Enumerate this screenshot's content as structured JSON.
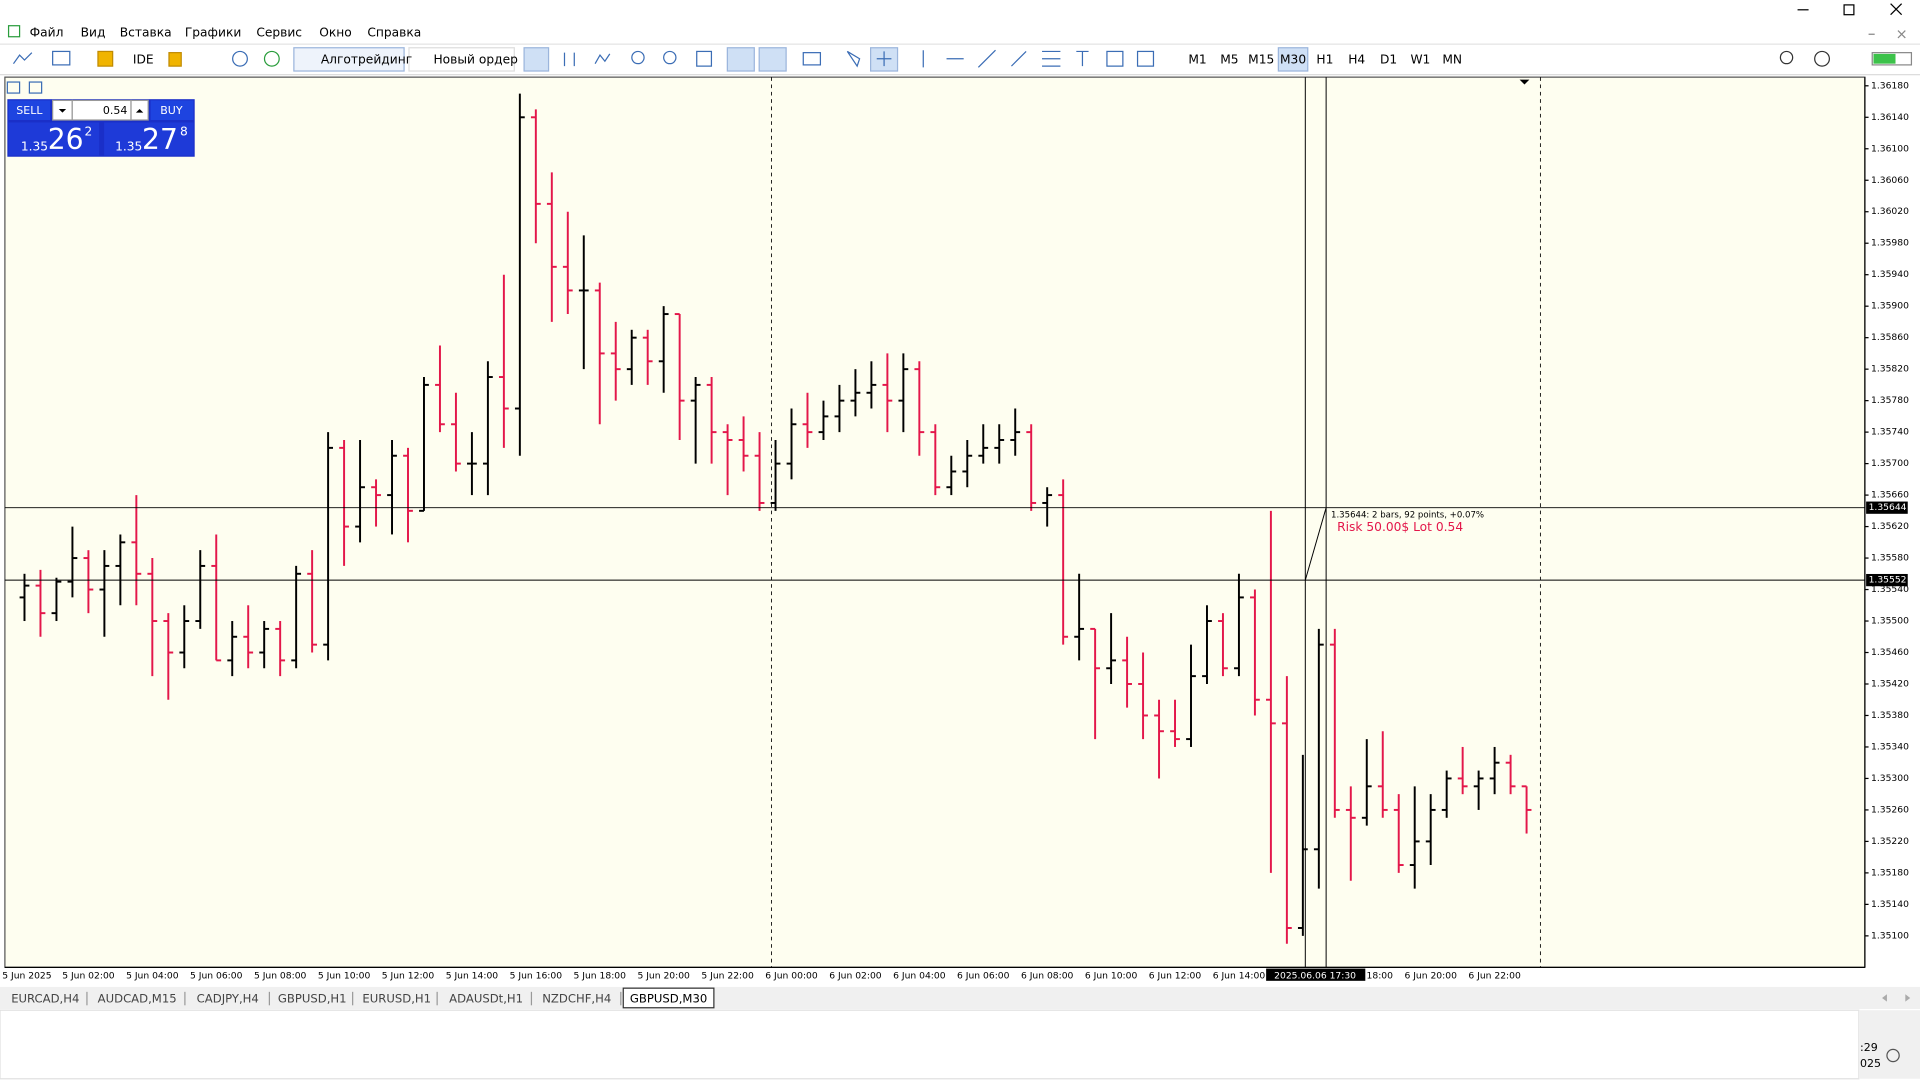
{
  "menu": [
    "Файл",
    "Вид",
    "Вставка",
    "Графики",
    "Сервис",
    "Окно",
    "Справка"
  ],
  "toolbar": {
    "ide": "IDE",
    "algo": "Алготрейдинг",
    "order": "Новый ордер",
    "timeframes": [
      "M1",
      "M5",
      "M15",
      "M30",
      "H1",
      "H4",
      "D1",
      "W1",
      "MN"
    ],
    "active_timeframe": 3
  },
  "trade_panel": {
    "sell": "SELL",
    "buy": "BUY",
    "lot": "0.54",
    "bid_big": "1.35",
    "bid_pips": "26",
    "bid_frac": "2",
    "ask_big": "1.35",
    "ask_pips": "27",
    "ask_frac": "8"
  },
  "chart_data": {
    "type": "ohlc",
    "up_color": "#000000",
    "down_color": "#e3174a",
    "background": "#fefef0",
    "ohlc": [
      [
        1.3553,
        1.3556,
        1.355,
        1.35545
      ],
      [
        1.35545,
        1.35565,
        1.3548,
        1.3551
      ],
      [
        1.3551,
        1.35555,
        1.355,
        1.3555
      ],
      [
        1.3555,
        1.3562,
        1.3553,
        1.3558
      ],
      [
        1.3558,
        1.3559,
        1.3551,
        1.3554
      ],
      [
        1.3554,
        1.3559,
        1.3548,
        1.3557
      ],
      [
        1.3557,
        1.3561,
        1.3552,
        1.356
      ],
      [
        1.356,
        1.3566,
        1.3552,
        1.3556
      ],
      [
        1.3556,
        1.3558,
        1.3543,
        1.355
      ],
      [
        1.355,
        1.3551,
        1.354,
        1.3546
      ],
      [
        1.3546,
        1.3552,
        1.3544,
        1.355
      ],
      [
        1.355,
        1.3559,
        1.3549,
        1.3557
      ],
      [
        1.3557,
        1.3561,
        1.3545,
        1.3545
      ],
      [
        1.3545,
        1.355,
        1.3543,
        1.3548
      ],
      [
        1.3548,
        1.3552,
        1.3544,
        1.3546
      ],
      [
        1.3546,
        1.355,
        1.3544,
        1.3549
      ],
      [
        1.3549,
        1.355,
        1.3543,
        1.3545
      ],
      [
        1.3545,
        1.3557,
        1.3544,
        1.3556
      ],
      [
        1.3556,
        1.3559,
        1.3546,
        1.3547
      ],
      [
        1.3547,
        1.3574,
        1.3545,
        1.3572
      ],
      [
        1.3572,
        1.3573,
        1.3557,
        1.3562
      ],
      [
        1.3562,
        1.3573,
        1.356,
        1.3567
      ],
      [
        1.3567,
        1.3568,
        1.3562,
        1.3566
      ],
      [
        1.3566,
        1.3573,
        1.3561,
        1.3571
      ],
      [
        1.3571,
        1.3572,
        1.356,
        1.3564
      ],
      [
        1.3564,
        1.3581,
        1.3564,
        1.358
      ],
      [
        1.358,
        1.3585,
        1.3574,
        1.3575
      ],
      [
        1.3575,
        1.3579,
        1.3569,
        1.357
      ],
      [
        1.357,
        1.3574,
        1.3566,
        1.357
      ],
      [
        1.357,
        1.3583,
        1.3566,
        1.3581
      ],
      [
        1.3581,
        1.3594,
        1.3572,
        1.3577
      ],
      [
        1.3577,
        1.3617,
        1.3571,
        1.3614
      ],
      [
        1.3614,
        1.3615,
        1.3598,
        1.3603
      ],
      [
        1.3603,
        1.3607,
        1.3588,
        1.3595
      ],
      [
        1.3595,
        1.3602,
        1.3589,
        1.3592
      ],
      [
        1.3592,
        1.3599,
        1.3582,
        1.3592
      ],
      [
        1.3592,
        1.3593,
        1.3575,
        1.3584
      ],
      [
        1.3584,
        1.3588,
        1.3578,
        1.3582
      ],
      [
        1.3582,
        1.3587,
        1.358,
        1.3586
      ],
      [
        1.3586,
        1.3587,
        1.358,
        1.3583
      ],
      [
        1.3583,
        1.359,
        1.3579,
        1.3589
      ],
      [
        1.3589,
        1.3589,
        1.3573,
        1.3578
      ],
      [
        1.3578,
        1.3581,
        1.357,
        1.358
      ],
      [
        1.358,
        1.3581,
        1.357,
        1.3574
      ],
      [
        1.3574,
        1.3575,
        1.3566,
        1.3573
      ],
      [
        1.3573,
        1.3576,
        1.3569,
        1.3571
      ],
      [
        1.3571,
        1.3574,
        1.3564,
        1.3565
      ],
      [
        1.3565,
        1.3573,
        1.3564,
        1.357
      ],
      [
        1.357,
        1.3577,
        1.3568,
        1.3575
      ],
      [
        1.3575,
        1.3579,
        1.3572,
        1.3574
      ],
      [
        1.3574,
        1.3578,
        1.3573,
        1.3576
      ],
      [
        1.3576,
        1.358,
        1.3574,
        1.3578
      ],
      [
        1.3578,
        1.3582,
        1.3576,
        1.3579
      ],
      [
        1.3579,
        1.3583,
        1.3577,
        1.358
      ],
      [
        1.358,
        1.3584,
        1.3574,
        1.3578
      ],
      [
        1.3578,
        1.3584,
        1.3574,
        1.3582
      ],
      [
        1.3582,
        1.3583,
        1.3571,
        1.3574
      ],
      [
        1.3574,
        1.3575,
        1.3566,
        1.3567
      ],
      [
        1.3567,
        1.3571,
        1.3566,
        1.3569
      ],
      [
        1.3569,
        1.3573,
        1.3567,
        1.3571
      ],
      [
        1.3571,
        1.3575,
        1.357,
        1.3572
      ],
      [
        1.3572,
        1.3575,
        1.357,
        1.3573
      ],
      [
        1.3573,
        1.3577,
        1.3571,
        1.3574
      ],
      [
        1.3574,
        1.3575,
        1.3564,
        1.3565
      ],
      [
        1.3565,
        1.3567,
        1.3562,
        1.3566
      ],
      [
        1.3566,
        1.3568,
        1.3547,
        1.3548
      ],
      [
        1.3548,
        1.3556,
        1.3545,
        1.3549
      ],
      [
        1.3549,
        1.3549,
        1.3535,
        1.3544
      ],
      [
        1.3544,
        1.3551,
        1.3542,
        1.3545
      ],
      [
        1.3545,
        1.3548,
        1.3539,
        1.3542
      ],
      [
        1.3542,
        1.3546,
        1.3535,
        1.3538
      ],
      [
        1.3538,
        1.354,
        1.353,
        1.3536
      ],
      [
        1.3536,
        1.354,
        1.3534,
        1.3535
      ],
      [
        1.3535,
        1.3547,
        1.3534,
        1.3543
      ],
      [
        1.3543,
        1.3552,
        1.3542,
        1.355
      ],
      [
        1.355,
        1.3551,
        1.3543,
        1.3544
      ],
      [
        1.3544,
        1.3556,
        1.3543,
        1.3553
      ],
      [
        1.3553,
        1.3554,
        1.3538,
        1.354
      ],
      [
        1.354,
        1.3564,
        1.3518,
        1.3537
      ],
      [
        1.3537,
        1.3543,
        1.3509,
        1.3511
      ],
      [
        1.3511,
        1.3533,
        1.351,
        1.3521
      ],
      [
        1.3521,
        1.3549,
        1.3516,
        1.3547
      ],
      [
        1.3547,
        1.3549,
        1.3525,
        1.3526
      ],
      [
        1.3526,
        1.3529,
        1.3517,
        1.3525
      ],
      [
        1.3525,
        1.3535,
        1.3524,
        1.3529
      ],
      [
        1.3529,
        1.3536,
        1.3525,
        1.3526
      ],
      [
        1.3526,
        1.3528,
        1.3518,
        1.3519
      ],
      [
        1.3519,
        1.3529,
        1.3516,
        1.3522
      ],
      [
        1.3522,
        1.3528,
        1.3519,
        1.3526
      ],
      [
        1.3526,
        1.3531,
        1.3525,
        1.353
      ],
      [
        1.353,
        1.3534,
        1.3528,
        1.3529
      ],
      [
        1.3529,
        1.3531,
        1.3526,
        1.353
      ],
      [
        1.353,
        1.3534,
        1.3528,
        1.3532
      ],
      [
        1.3532,
        1.3533,
        1.3528,
        1.3529
      ],
      [
        1.3529,
        1.3529,
        1.3523,
        1.3526
      ]
    ],
    "ylim": [
      1.3506,
      1.36191
    ],
    "yticks": [
      {
        "value": 1.3618,
        "label": "1.36180"
      },
      {
        "value": 1.3614,
        "label": "1.36140"
      },
      {
        "value": 1.361,
        "label": "1.36100"
      },
      {
        "value": 1.3606,
        "label": "1.36060"
      },
      {
        "value": 1.3602,
        "label": "1.36020"
      },
      {
        "value": 1.3598,
        "label": "1.35980"
      },
      {
        "value": 1.3594,
        "label": "1.35940"
      },
      {
        "value": 1.359,
        "label": "1.35900"
      },
      {
        "value": 1.3586,
        "label": "1.35860"
      },
      {
        "value": 1.3582,
        "label": "1.35820"
      },
      {
        "value": 1.3578,
        "label": "1.35780"
      },
      {
        "value": 1.3574,
        "label": "1.35740"
      },
      {
        "value": 1.357,
        "label": "1.35700"
      },
      {
        "value": 1.3566,
        "label": "1.35660"
      },
      {
        "value": 1.3562,
        "label": "1.35620"
      },
      {
        "value": 1.3558,
        "label": "1.35580"
      },
      {
        "value": 1.3554,
        "label": "1.35540"
      },
      {
        "value": 1.355,
        "label": "1.35500"
      },
      {
        "value": 1.3546,
        "label": "1.35460"
      },
      {
        "value": 1.3542,
        "label": "1.35420"
      },
      {
        "value": 1.3538,
        "label": "1.35380"
      },
      {
        "value": 1.3534,
        "label": "1.35340"
      },
      {
        "value": 1.353,
        "label": "1.35300"
      },
      {
        "value": 1.3526,
        "label": "1.35260"
      },
      {
        "value": 1.3522,
        "label": "1.35220"
      },
      {
        "value": 1.3518,
        "label": "1.35180"
      },
      {
        "value": 1.3514,
        "label": "1.35140"
      },
      {
        "value": 1.351,
        "label": "1.35100"
      }
    ],
    "x_labels": [
      "5 Jun 2025",
      "5 Jun 02:00",
      "5 Jun 04:00",
      "5 Jun 06:00",
      "5 Jun 08:00",
      "5 Jun 10:00",
      "5 Jun 12:00",
      "5 Jun 14:00",
      "5 Jun 16:00",
      "5 Jun 18:00",
      "5 Jun 20:00",
      "5 Jun 22:00",
      "6 Jun 00:00",
      "6 Jun 02:00",
      "6 Jun 04:00",
      "6 Jun 06:00",
      "6 Jun 08:00",
      "6 Jun 10:00",
      "6 Jun 12:00",
      "6 Jun 14:00",
      null,
      "6 Jun 18:00",
      "6 Jun 20:00",
      "6 Jun 22:00"
    ],
    "price_lines": [
      {
        "value": 1.35644,
        "label": "1.35644"
      },
      {
        "value": 1.35552,
        "label": "1.35552"
      }
    ],
    "crosshair": {
      "time": "2025.06.06 17:30",
      "info": "1.35644: 2 bars, 92 points, +0.07%",
      "risk": "Risk 50.00$ Lot 0.54"
    }
  },
  "tabs": [
    "EURCAD,H4",
    "AUDCAD,M15",
    "CADJPY,H4",
    "GBPUSD,H1",
    "EURUSD,H1",
    "ADAUSDt,H1",
    "NZDCHF,H4",
    "GBPUSD,M30"
  ],
  "active_tab": 7,
  "clock": [
    ":29",
    "025"
  ]
}
